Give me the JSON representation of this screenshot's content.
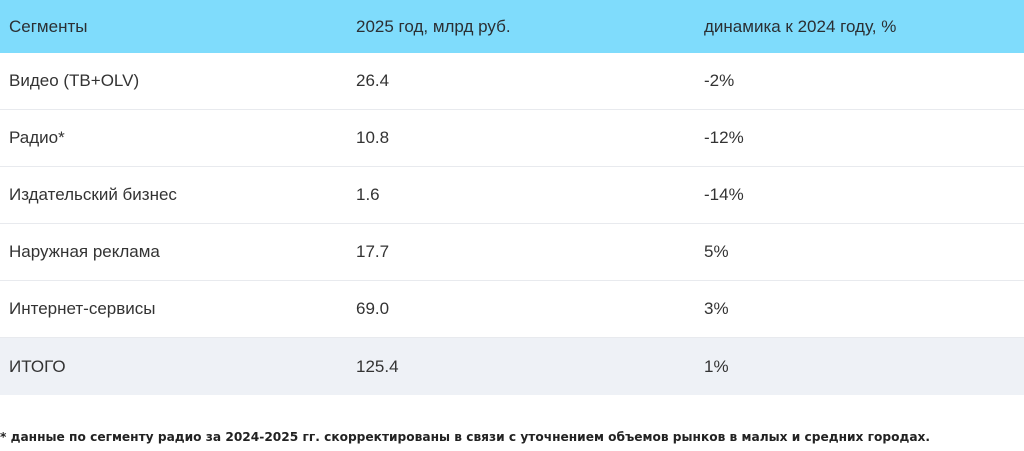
{
  "table": {
    "headers": [
      "Сегменты",
      "2025 год, млрд руб.",
      "динамика к 2024 году, %"
    ],
    "rows": [
      [
        "Видео (ТВ+OLV)",
        "26.4",
        "-2%"
      ],
      [
        "Радио*",
        "10.8",
        "-12%"
      ],
      [
        "Издательский бизнес",
        "1.6",
        "-14%"
      ],
      [
        "Наружная реклама",
        "17.7",
        "5%"
      ],
      [
        "Интернет-сервисы",
        "69.0",
        "3%"
      ]
    ],
    "total": [
      "ИТОГО",
      "125.4",
      "1%"
    ]
  },
  "footnote": "* данные по сегменту радио за 2024-2025 гг. скорректированы в связи с уточнением объемов рынков в малых и средних городах.",
  "colors": {
    "header_bg": "#7fdcfc",
    "total_bg": "#eef1f6"
  }
}
